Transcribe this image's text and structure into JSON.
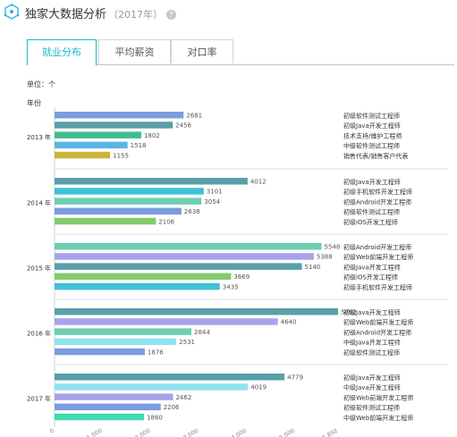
{
  "header": {
    "title": "独家大数据分析",
    "year": "（2017年）",
    "help_icon": "question-circle-icon",
    "logo_icon": "hexagon-network-icon"
  },
  "tabs": [
    {
      "label": "就业分布",
      "active": true
    },
    {
      "label": "平均薪资",
      "active": false
    },
    {
      "label": "对口率",
      "active": false
    }
  ],
  "unit_label": "单位：个",
  "chart_data": {
    "type": "bar",
    "orientation": "horizontal",
    "ylabel": "年份",
    "x_ticks": [
      "0",
      "1,000",
      "2,000",
      "3,000",
      "4,000",
      "5,000",
      "5,892"
    ],
    "xlim": [
      0,
      5892
    ],
    "groups": [
      {
        "year": "2013 年",
        "bars": [
          {
            "label": "初级软件测试工程师",
            "value": 2681,
            "color": "#7a9de0"
          },
          {
            "label": "初级Java开发工程师",
            "value": 2456,
            "color": "#59a0a8"
          },
          {
            "label": "技术支持/维护工程师",
            "value": 1802,
            "color": "#41bb8f"
          },
          {
            "label": "中级软件测试工程师",
            "value": 1518,
            "color": "#5ab5e3"
          },
          {
            "label": "销售代表/销售客户代表",
            "value": 1155,
            "color": "#cdb23e"
          }
        ]
      },
      {
        "year": "2014 年",
        "bars": [
          {
            "label": "初级Java开发工程师",
            "value": 4012,
            "color": "#59a0a8"
          },
          {
            "label": "初级手机软件开发工程师",
            "value": 3101,
            "color": "#3ec2d8"
          },
          {
            "label": "初级Android开发工程师",
            "value": 3054,
            "color": "#6ccfb0"
          },
          {
            "label": "初级软件测试工程师",
            "value": 2638,
            "color": "#7a9de0"
          },
          {
            "label": "初级iOS开发工程师",
            "value": 2106,
            "color": "#83cc6e"
          }
        ]
      },
      {
        "year": "2015 年",
        "bars": [
          {
            "label": "初级Android开发工程师",
            "value": 5548,
            "color": "#6ccfb0"
          },
          {
            "label": "初级Web前端开发工程师",
            "value": 5388,
            "color": "#a7a3ea"
          },
          {
            "label": "初级Java开发工程师",
            "value": 5140,
            "color": "#59a0a8"
          },
          {
            "label": "初级iOS开发工程师",
            "value": 3669,
            "color": "#83cc6e"
          },
          {
            "label": "初级手机软件开发工程师",
            "value": 3435,
            "color": "#3ec2d8"
          }
        ]
      },
      {
        "year": "2016 年",
        "bars": [
          {
            "label": "初级Java开发工程师",
            "value": 5892,
            "color": "#59a0a8"
          },
          {
            "label": "初级Web前端开发工程师",
            "value": 4640,
            "color": "#a7a3ea"
          },
          {
            "label": "初级Android开发工程师",
            "value": 2844,
            "color": "#6ccfb0"
          },
          {
            "label": "中级Java开发工程师",
            "value": 2531,
            "color": "#8fe3f0"
          },
          {
            "label": "初级软件测试工程师",
            "value": 1876,
            "color": "#7a9de0"
          }
        ]
      },
      {
        "year": "2017 年",
        "bars": [
          {
            "label": "初级Java开发工程师",
            "value": 4779,
            "color": "#59a0a8"
          },
          {
            "label": "中级Java开发工程师",
            "value": 4019,
            "color": "#8fe3f0"
          },
          {
            "label": "初级Web前端开发工程师",
            "value": 2462,
            "color": "#a7a3ea"
          },
          {
            "label": "初级软件测试工程师",
            "value": 2206,
            "color": "#7a9de0"
          },
          {
            "label": "中级Web前端开发工程师",
            "value": 1860,
            "color": "#3fd9b2"
          }
        ]
      }
    ]
  }
}
